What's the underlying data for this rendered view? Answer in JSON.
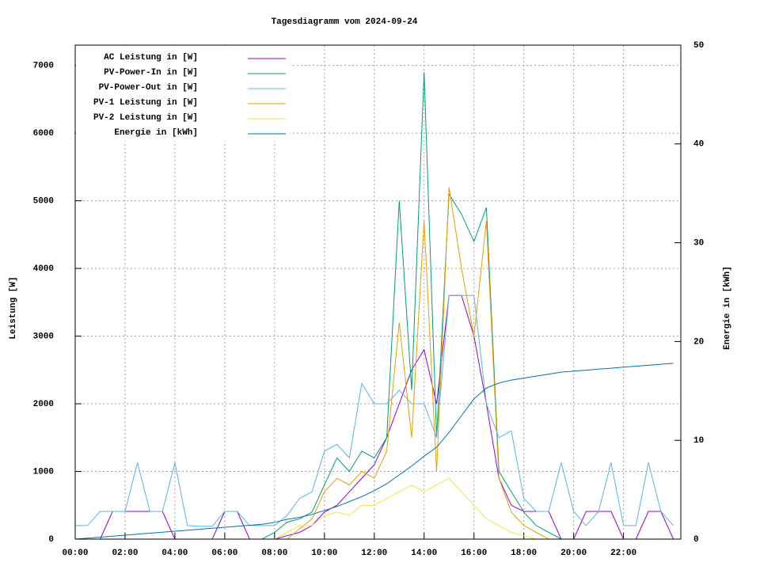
{
  "chart_data": {
    "type": "line",
    "title": "Tagesdiagramm vom 2024-09-24",
    "y_label": "Leistung [W]",
    "y2_label": "Energie in [kWh]",
    "x": [
      0,
      0.5,
      1,
      1.5,
      2,
      2.5,
      3,
      3.5,
      4,
      4.5,
      5,
      5.5,
      6,
      6.5,
      7,
      7.5,
      8,
      8.5,
      9,
      9.5,
      10,
      10.5,
      11,
      11.5,
      12,
      12.5,
      13,
      13.5,
      14,
      14.5,
      15,
      15.5,
      16,
      16.5,
      17,
      17.5,
      18,
      18.5,
      19,
      19.5,
      20,
      20.5,
      21,
      21.5,
      22,
      22.5,
      23,
      23.5,
      24
    ],
    "xlim": [
      0,
      24.3
    ],
    "xticks": [
      {
        "value": 0,
        "label": "00:00"
      },
      {
        "value": 2,
        "label": "02:00"
      },
      {
        "value": 4,
        "label": "04:00"
      },
      {
        "value": 6,
        "label": "06:00"
      },
      {
        "value": 8,
        "label": "08:00"
      },
      {
        "value": 10,
        "label": "10:00"
      },
      {
        "value": 12,
        "label": "12:00"
      },
      {
        "value": 14,
        "label": "14:00"
      },
      {
        "value": 16,
        "label": "16:00"
      },
      {
        "value": 18,
        "label": "18:00"
      },
      {
        "value": 20,
        "label": "20:00"
      },
      {
        "value": 22,
        "label": "22:00"
      }
    ],
    "ylim": [
      0,
      7300
    ],
    "yticks": [
      0,
      1000,
      2000,
      3000,
      4000,
      5000,
      6000,
      7000
    ],
    "y2lim": [
      0,
      50
    ],
    "y2ticks": [
      0,
      10,
      20,
      30,
      40,
      50
    ],
    "grid": true,
    "legend": "upper-left",
    "series": [
      {
        "name": "AC Leistung in [W]",
        "color": "#9400d3",
        "values": [
          0,
          0,
          0,
          410,
          410,
          410,
          410,
          410,
          0,
          0,
          0,
          0,
          410,
          410,
          0,
          0,
          0,
          50,
          100,
          200,
          400,
          500,
          700,
          900,
          1100,
          1500,
          2000,
          2500,
          2800,
          2000,
          3600,
          3600,
          3000,
          2000,
          900,
          500,
          410,
          410,
          410,
          0,
          0,
          410,
          410,
          410,
          0,
          0,
          410,
          410,
          0
        ]
      },
      {
        "name": "PV-Power-In in [W]",
        "color": "#009e73",
        "values": [
          0,
          0,
          0,
          0,
          0,
          0,
          0,
          0,
          0,
          0,
          0,
          0,
          0,
          0,
          0,
          0,
          100,
          250,
          300,
          400,
          800,
          1200,
          1000,
          1300,
          1200,
          1500,
          5000,
          2200,
          6900,
          1500,
          5100,
          4800,
          4400,
          4900,
          1000,
          700,
          400,
          200,
          100,
          0,
          0,
          0,
          0,
          0,
          0,
          0,
          0,
          0,
          0
        ]
      },
      {
        "name": "PV-Power-Out in [W]",
        "color": "#56b4e9",
        "values": [
          200,
          200,
          410,
          410,
          410,
          1130,
          410,
          410,
          1130,
          200,
          190,
          190,
          410,
          410,
          200,
          200,
          200,
          350,
          600,
          700,
          1300,
          1400,
          1200,
          2300,
          2000,
          2000,
          2200,
          2000,
          2000,
          1500,
          3600,
          3600,
          3600,
          2000,
          1500,
          1600,
          600,
          410,
          410,
          1130,
          410,
          200,
          410,
          1130,
          200,
          200,
          1130,
          410,
          200
        ]
      },
      {
        "name": "PV-1 Leistung in [W]",
        "color": "#e69f00",
        "values": [
          0,
          0,
          0,
          0,
          0,
          0,
          0,
          0,
          0,
          0,
          0,
          0,
          0,
          0,
          0,
          0,
          0,
          0,
          150,
          300,
          700,
          900,
          800,
          1000,
          900,
          1300,
          3200,
          1500,
          4700,
          1000,
          5200,
          4000,
          3000,
          4700,
          900,
          400,
          200,
          100,
          0,
          0,
          0,
          0,
          0,
          0,
          0,
          0,
          0,
          0,
          0
        ]
      },
      {
        "name": "PV-2 Leistung in [W]",
        "color": "#f0e442",
        "values": [
          0,
          0,
          0,
          0,
          0,
          0,
          0,
          0,
          0,
          0,
          0,
          0,
          0,
          0,
          0,
          0,
          0,
          100,
          200,
          200,
          350,
          400,
          350,
          500,
          500,
          600,
          700,
          800,
          700,
          800,
          900,
          700,
          500,
          300,
          200,
          100,
          50,
          0,
          0,
          0,
          0,
          0,
          0,
          0,
          0,
          0,
          0,
          0,
          0
        ]
      },
      {
        "name": "Energie in [kWh]",
        "color": "#0072b2",
        "axis": "y2",
        "values": [
          0,
          0.1,
          0.2,
          0.3,
          0.4,
          0.5,
          0.6,
          0.7,
          0.8,
          0.9,
          1.0,
          1.1,
          1.2,
          1.3,
          1.4,
          1.5,
          1.7,
          2,
          2.2,
          2.5,
          2.9,
          3.3,
          3.8,
          4.3,
          4.9,
          5.6,
          6.5,
          7.4,
          8.4,
          9.3,
          10.8,
          12.5,
          14.2,
          15.3,
          15.8,
          16.1,
          16.3,
          16.5,
          16.7,
          16.9,
          17.0,
          17.1,
          17.2,
          17.3,
          17.4,
          17.5,
          17.6,
          17.7,
          17.8
        ]
      }
    ]
  }
}
